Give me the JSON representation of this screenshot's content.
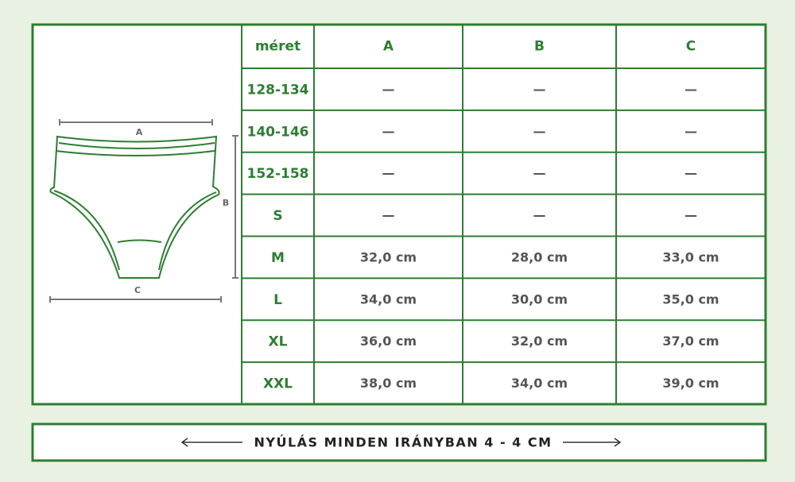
{
  "table": {
    "header": [
      "méret",
      "A",
      "B",
      "C"
    ],
    "rows": [
      [
        "128-134",
        "—",
        "—",
        "—"
      ],
      [
        "140-146",
        "—",
        "—",
        "—"
      ],
      [
        "152-158",
        "—",
        "—",
        "—"
      ],
      [
        "S",
        "—",
        "—",
        "—"
      ],
      [
        "M",
        "32,0 cm",
        "28,0 cm",
        "33,0 cm"
      ],
      [
        "L",
        "34,0 cm",
        "30,0 cm",
        "35,0 cm"
      ],
      [
        "XL",
        "36,0 cm",
        "32,0 cm",
        "37,0 cm"
      ],
      [
        "XXL",
        "38,0 cm",
        "34,0 cm",
        "39,0 cm"
      ]
    ]
  },
  "diagram": {
    "labels": [
      "A",
      "B",
      "C"
    ]
  },
  "footer": "NYÚLÁS MINDEN IRÁNYBAN 4 - 4 CM"
}
